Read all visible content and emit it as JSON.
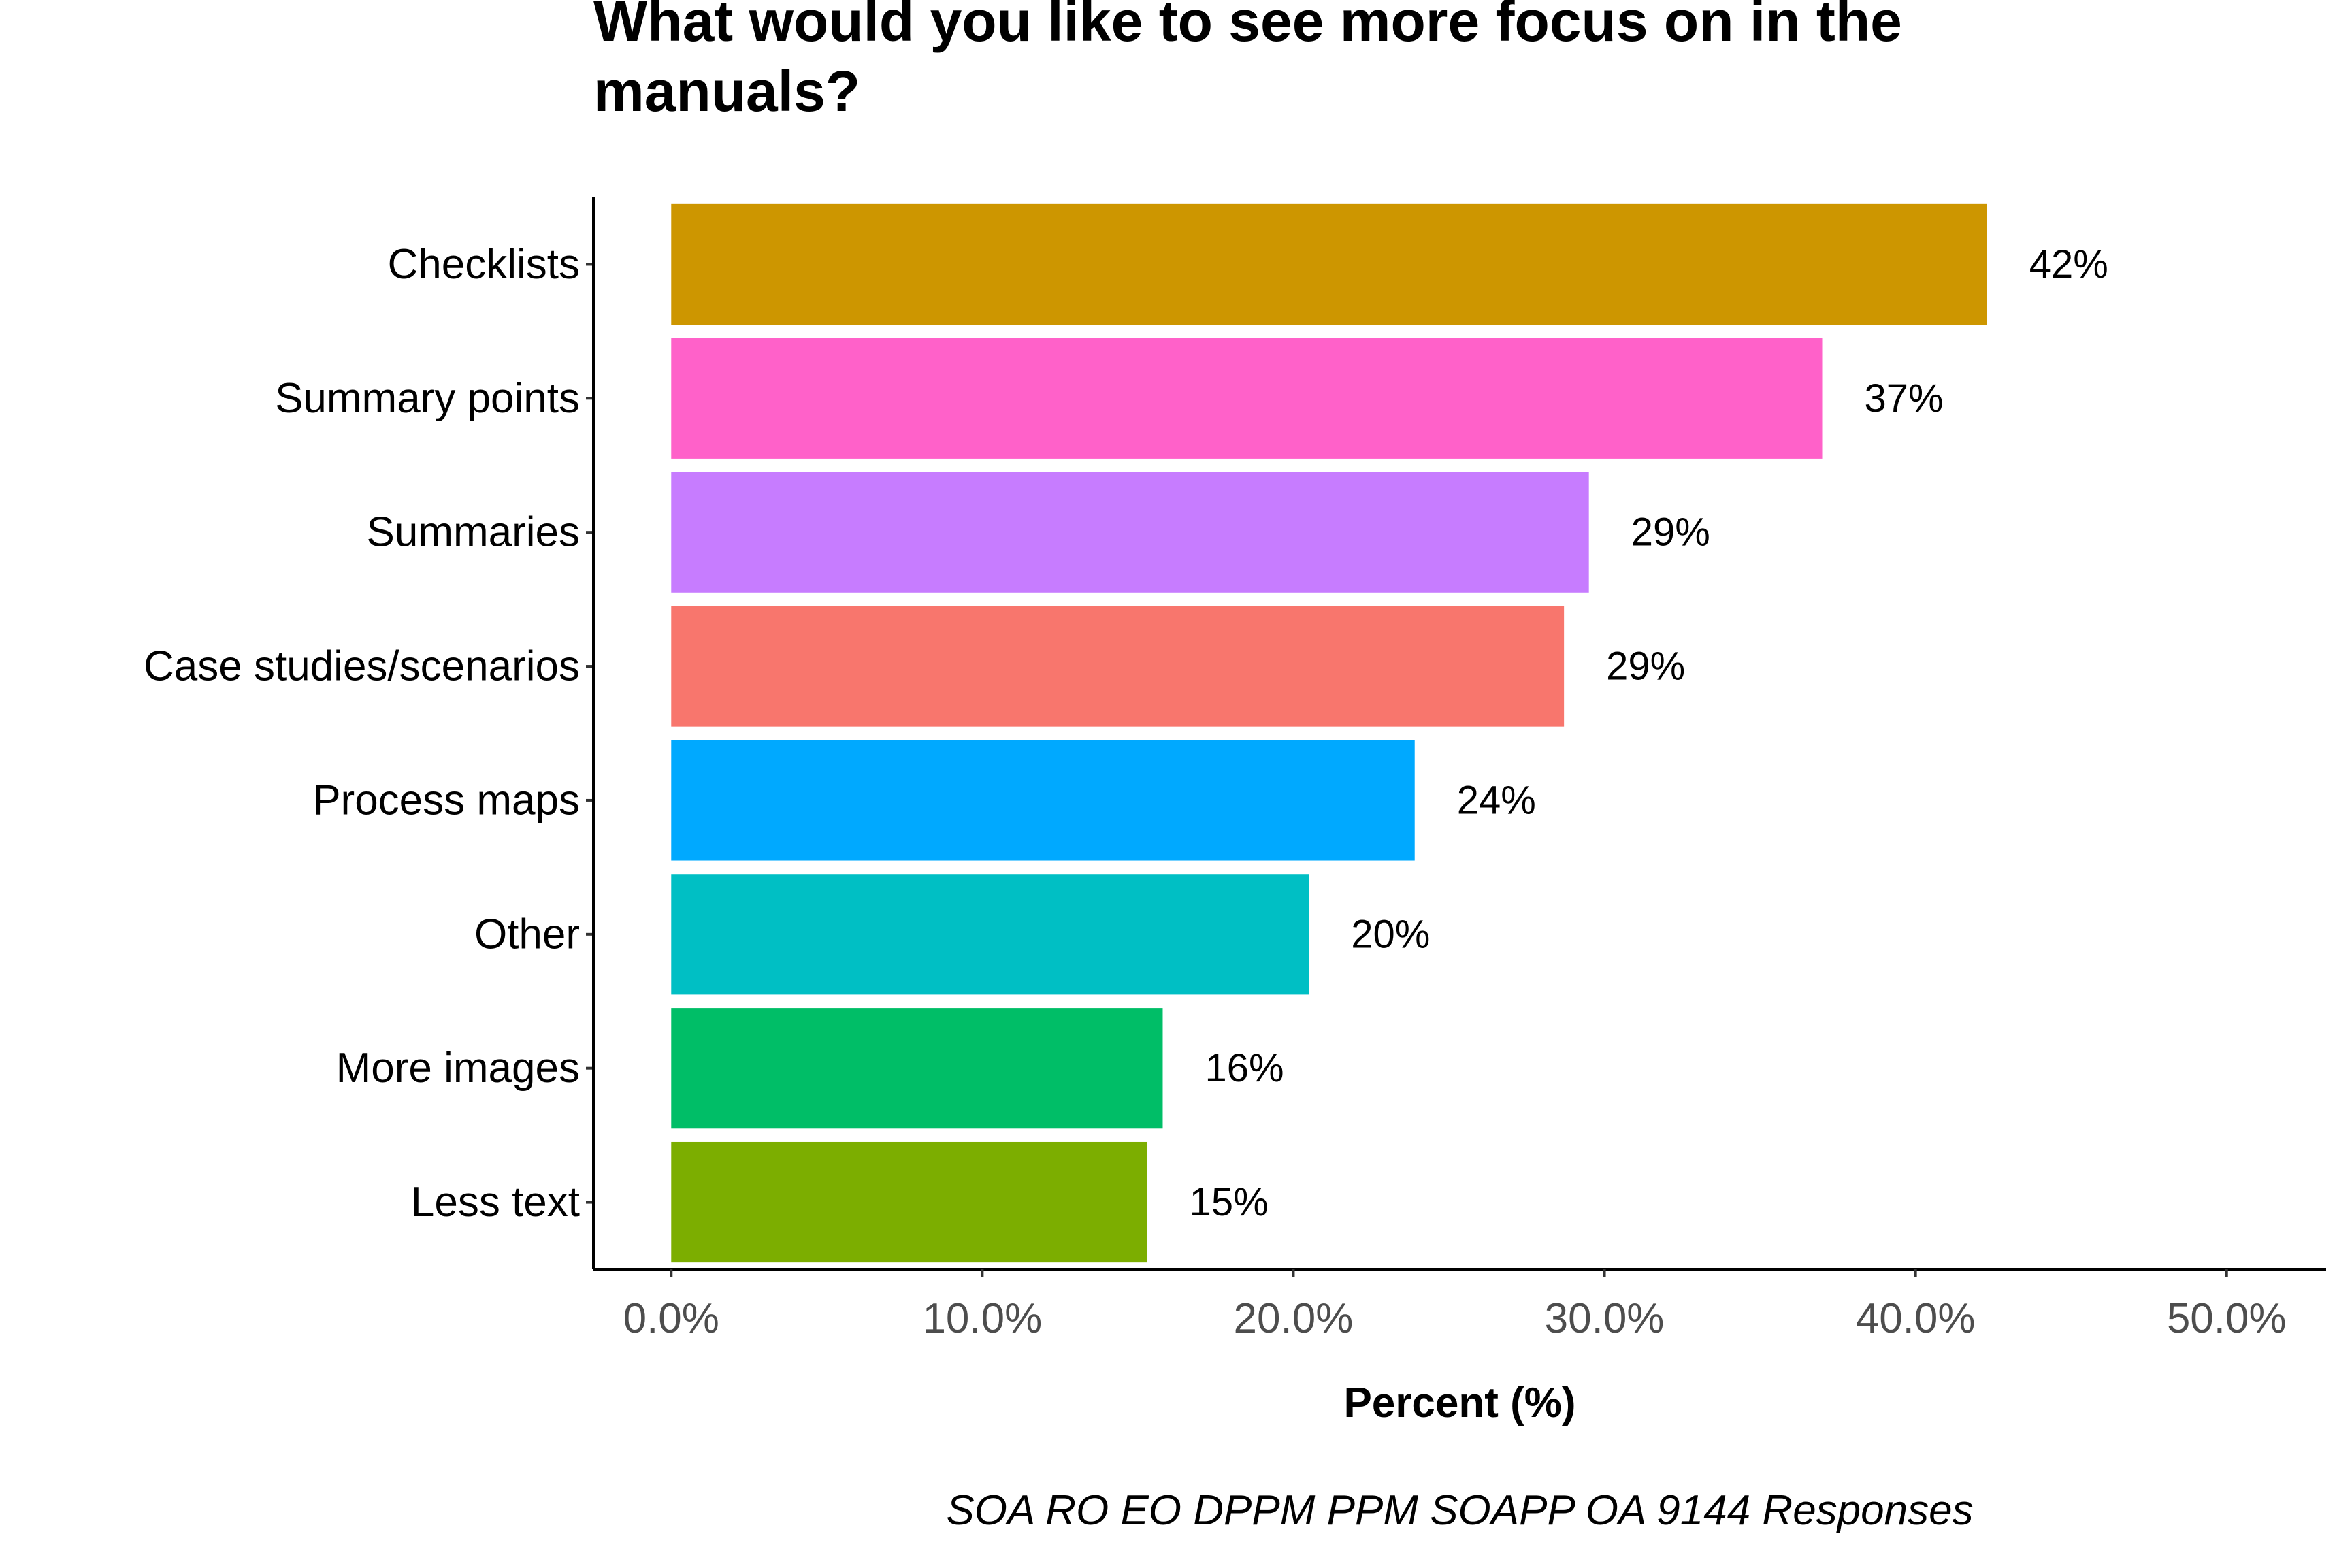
{
  "chart_data": {
    "type": "bar",
    "orientation": "horizontal",
    "title_lines": [
      "What would you like to see more focus on in the",
      "manuals?"
    ],
    "categories": [
      "Checklists",
      "Summary points",
      "Summaries",
      "Case studies/scenarios",
      "Process maps",
      "Other",
      "More images",
      "Less text"
    ],
    "values": [
      42.3,
      37.0,
      29.5,
      28.7,
      23.9,
      20.5,
      15.8,
      15.3
    ],
    "value_labels": [
      "42%",
      "37%",
      "29%",
      "29%",
      "24%",
      "20%",
      "16%",
      "15%"
    ],
    "colors": [
      "#CD9600",
      "#FF61C9",
      "#C77CFF",
      "#F8766D",
      "#00A9FF",
      "#00BFC4",
      "#00BE67",
      "#7CAE00"
    ],
    "x_ticks": [
      0,
      10,
      20,
      30,
      40,
      50
    ],
    "x_tick_labels": [
      "0.0%",
      "10.0%",
      "20.0%",
      "30.0%",
      "40.0%",
      "50.0%"
    ],
    "xlim": [
      -2.5,
      53.2
    ],
    "xlabel": "Percent (%)",
    "ylabel": "",
    "caption": "SOA RO EO DPPM PPM SOAPP OA 9144 Responses",
    "grid": false,
    "legend": "none"
  }
}
